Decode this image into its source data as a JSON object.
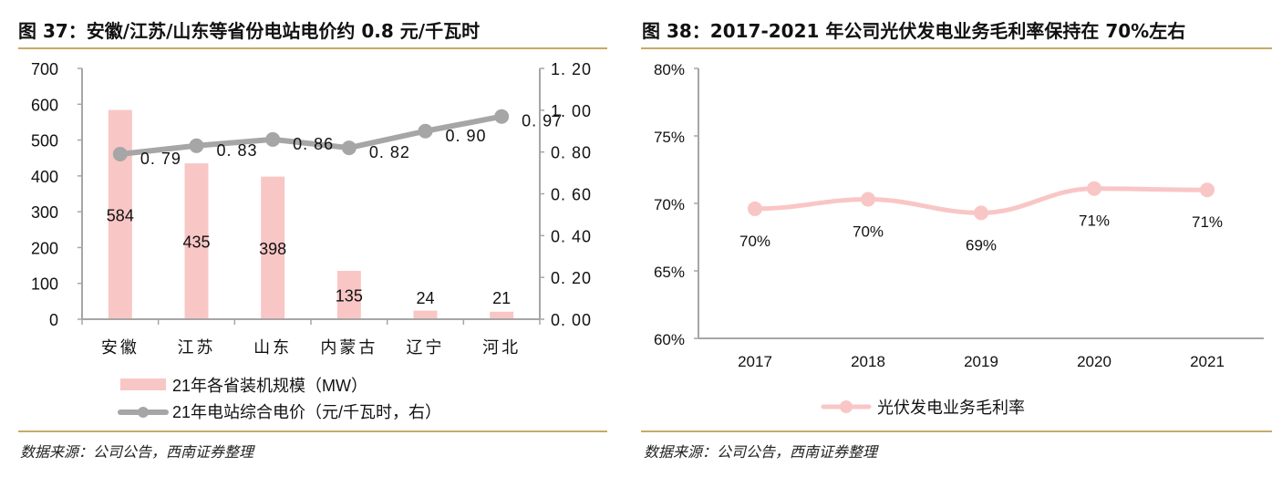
{
  "left": {
    "title": "图 37：安徽/江苏/山东等省份电站电价约 0.8 元/千瓦时",
    "source": "数据来源：公司公告，西南证券整理"
  },
  "right": {
    "title": "图 38：2017-2021 年公司光伏发电业务毛利率保持在 70%左右",
    "source": "数据来源：公司公告，西南证券整理"
  },
  "chart_data": [
    {
      "type": "bar+line",
      "categories": [
        "安徽",
        "江苏",
        "山东",
        "内蒙古",
        "辽宁",
        "河北"
      ],
      "series": [
        {
          "name": "21年各省装机规模（MW）",
          "type": "bar",
          "axis": "left",
          "values": [
            584,
            435,
            398,
            135,
            24,
            21
          ],
          "labels": [
            "584",
            "435",
            "398",
            "135",
            "24",
            "21"
          ],
          "color": "#f9c6c6"
        },
        {
          "name": "21年电站综合电价（元/千瓦时，右）",
          "type": "line",
          "axis": "right",
          "values": [
            0.79,
            0.83,
            0.86,
            0.82,
            0.9,
            0.97
          ],
          "labels": [
            "0.79",
            "0.83",
            "0.86",
            "0.82",
            "0.90",
            "0.97"
          ],
          "color": "#a6a6a6"
        }
      ],
      "ylim": [
        0,
        700
      ],
      "yticks": [
        "0",
        "100",
        "200",
        "300",
        "400",
        "500",
        "600",
        "700"
      ],
      "y2lim": [
        0,
        1.2
      ],
      "y2ticks": [
        "0.00",
        "0.20",
        "0.40",
        "0.60",
        "0.80",
        "1.00",
        "1.20"
      ],
      "grid": false,
      "legend": "bottom"
    },
    {
      "type": "line",
      "categories": [
        "2017",
        "2018",
        "2019",
        "2020",
        "2021"
      ],
      "series": [
        {
          "name": "光伏发电业务毛利率",
          "values": [
            69.6,
            70.3,
            69.3,
            71.1,
            71.0
          ],
          "labels": [
            "70%",
            "70%",
            "69%",
            "71%",
            "71%"
          ],
          "color": "#f9c6c6"
        }
      ],
      "ylim": [
        60,
        80
      ],
      "yticks": [
        "60%",
        "65%",
        "70%",
        "75%",
        "80%"
      ],
      "grid": false,
      "legend": "bottom"
    }
  ]
}
